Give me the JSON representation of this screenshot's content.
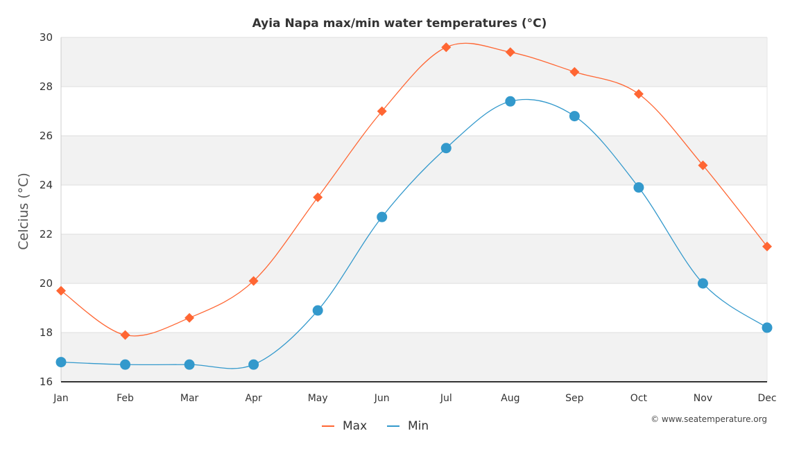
{
  "chart_data": {
    "type": "line",
    "title": "Ayia Napa max/min water temperatures (°C)",
    "xlabel": "",
    "ylabel": "Celcius (°C)",
    "categories": [
      "Jan",
      "Feb",
      "Mar",
      "Apr",
      "May",
      "Jun",
      "Jul",
      "Aug",
      "Sep",
      "Oct",
      "Nov",
      "Dec"
    ],
    "ylim": [
      16,
      30
    ],
    "yticks": [
      16,
      18,
      20,
      22,
      24,
      26,
      28,
      30
    ],
    "grid": true,
    "legend": "bottom-center",
    "series": [
      {
        "name": "Max",
        "color": "#ff6633",
        "marker": "diamond",
        "values": [
          19.7,
          17.9,
          18.6,
          20.1,
          23.5,
          27.0,
          29.6,
          29.4,
          28.6,
          27.7,
          24.8,
          21.5
        ]
      },
      {
        "name": "Min",
        "color": "#3399cc",
        "marker": "circle",
        "values": [
          16.8,
          16.7,
          16.7,
          16.7,
          18.9,
          22.7,
          25.5,
          27.4,
          26.8,
          23.9,
          20.0,
          18.2
        ]
      }
    ],
    "credit": "© www.seatemperature.org"
  }
}
